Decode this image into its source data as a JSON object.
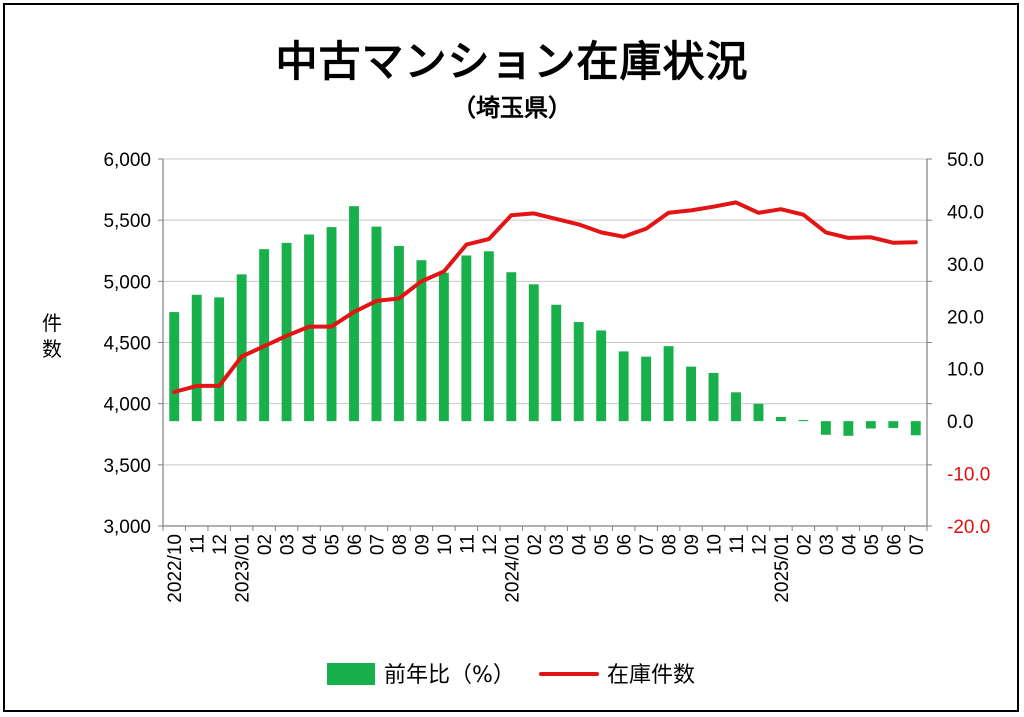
{
  "chart_data": {
    "type": "bar",
    "title": "中古マンション在庫状況",
    "subtitle": "（埼玉県）",
    "ylabel": "件数",
    "categories": [
      "2022/10",
      "11",
      "12",
      "2023/01",
      "02",
      "03",
      "04",
      "05",
      "06",
      "07",
      "08",
      "09",
      "10",
      "11",
      "12",
      "2024/01",
      "02",
      "03",
      "04",
      "05",
      "06",
      "07",
      "08",
      "09",
      "10",
      "11",
      "12",
      "2025/01",
      "02",
      "03",
      "04",
      "05",
      "06",
      "07"
    ],
    "series": [
      {
        "name": "前年比（%）",
        "type": "bar",
        "axis": "right",
        "color": "#17b04a",
        "values": [
          20.8,
          24.1,
          23.6,
          28.0,
          32.8,
          34.0,
          35.6,
          37.0,
          41.0,
          37.1,
          33.4,
          30.7,
          28.3,
          31.6,
          32.4,
          28.4,
          26.1,
          22.2,
          18.9,
          17.3,
          13.3,
          12.3,
          14.3,
          10.4,
          9.2,
          5.5,
          3.3,
          0.8,
          0.2,
          -2.6,
          -2.8,
          -1.4,
          -1.3,
          -2.7
        ]
      },
      {
        "name": "在庫件数",
        "type": "line",
        "axis": "left",
        "color": "#e31414",
        "values": [
          4095,
          4145,
          4145,
          4385,
          4470,
          4555,
          4630,
          4630,
          4750,
          4840,
          4860,
          5000,
          5080,
          5300,
          5345,
          5540,
          5555,
          5510,
          5465,
          5400,
          5365,
          5430,
          5560,
          5580,
          5610,
          5645,
          5560,
          5590,
          5545,
          5400,
          5355,
          5360,
          5315,
          5320
        ]
      }
    ],
    "y_left": {
      "min": 3000,
      "max": 6000,
      "step": 500,
      "ticks": [
        "3,000",
        "3,500",
        "4,000",
        "4,500",
        "5,000",
        "5,500",
        "6,000"
      ]
    },
    "y_right": {
      "min": -20,
      "max": 50,
      "step": 10,
      "ticks": [
        "-20.0",
        "-10.0",
        "0.0",
        "10.0",
        "20.0",
        "30.0",
        "40.0",
        "50.0"
      ]
    },
    "grid": true,
    "legend_position": "bottom"
  },
  "colors": {
    "bar": "#17b04a",
    "line": "#e31414",
    "negative_tick": "#e01010"
  }
}
